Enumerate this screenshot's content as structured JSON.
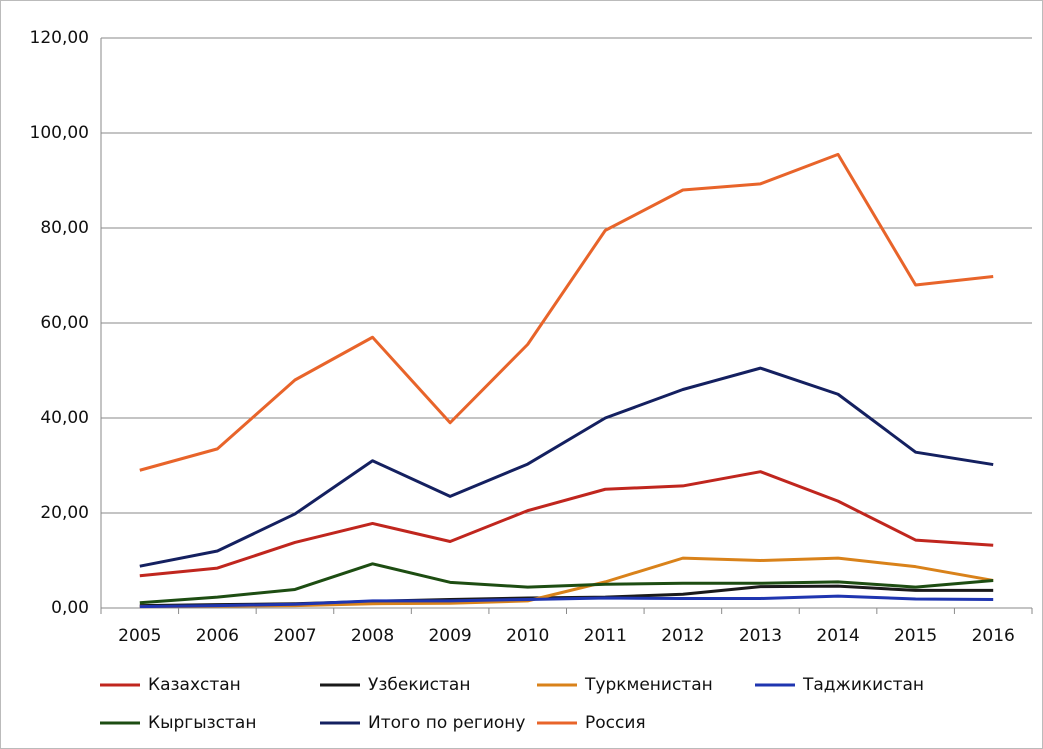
{
  "chart_data": {
    "type": "line",
    "categories": [
      "2005",
      "2006",
      "2007",
      "2008",
      "2009",
      "2010",
      "2011",
      "2012",
      "2013",
      "2014",
      "2015",
      "2016"
    ],
    "series": [
      {
        "name": "Казахстан",
        "color": "#c0261e",
        "values": [
          6.8,
          8.4,
          13.8,
          17.8,
          14,
          20.5,
          25,
          25.7,
          28.7,
          22.5,
          14.3,
          13.2
        ]
      },
      {
        "name": "Узбекистан",
        "color": "#1a1a1a",
        "values": [
          0.5,
          0.7,
          0.9,
          1.4,
          1.8,
          2.1,
          2.3,
          2.9,
          4.5,
          4.6,
          3.7,
          3.7
        ]
      },
      {
        "name": "Туркменистан",
        "color": "#d9821a",
        "values": [
          0.3,
          0.4,
          0.5,
          0.9,
          1,
          1.5,
          5.5,
          10.5,
          10,
          10.5,
          8.7,
          5.8
        ]
      },
      {
        "name": "Таджикистан",
        "color": "#1f35b0",
        "values": [
          0.3,
          0.5,
          0.8,
          1.5,
          1.5,
          1.8,
          2.1,
          2,
          2,
          2.5,
          1.9,
          1.8
        ]
      },
      {
        "name": "Кыргызстан",
        "color": "#1d4d12",
        "values": [
          1.1,
          2.3,
          3.9,
          9.3,
          5.4,
          4.4,
          5,
          5.2,
          5.2,
          5.5,
          4.4,
          5.8
        ]
      },
      {
        "name": "Итого по региону",
        "color": "#142060",
        "values": [
          8.8,
          12,
          19.8,
          31,
          23.5,
          30.3,
          40,
          46,
          50.5,
          45,
          32.8,
          30.2
        ]
      },
      {
        "name": "Россия",
        "color": "#e8642a",
        "values": [
          29,
          33.5,
          48,
          57,
          39,
          55.5,
          79.5,
          88,
          89.3,
          95.5,
          68,
          69.8
        ]
      }
    ],
    "ylim": [
      0,
      120
    ],
    "yticks": [
      {
        "value": 0,
        "label": "0,00"
      },
      {
        "value": 20,
        "label": "20,00"
      },
      {
        "value": 40,
        "label": "40,00"
      },
      {
        "value": 60,
        "label": "60,00"
      },
      {
        "value": 80,
        "label": "80,00"
      },
      {
        "value": 100,
        "label": "100,00"
      },
      {
        "value": 120,
        "label": "120,00"
      }
    ],
    "grid": true
  }
}
